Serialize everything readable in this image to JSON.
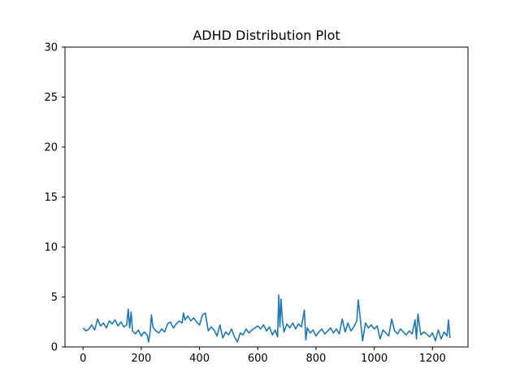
{
  "chart_data": {
    "type": "line",
    "title": "ADHD Distribution Plot",
    "xlabel": "",
    "ylabel": "",
    "xlim": [
      -62,
      1322
    ],
    "ylim": [
      0,
      30
    ],
    "xticks": [
      "0",
      "200",
      "400",
      "600",
      "800",
      "1000",
      "1200"
    ],
    "yticks": [
      "0",
      "5",
      "10",
      "15",
      "20",
      "25",
      "30"
    ],
    "grid": false,
    "legend": "none",
    "series": [
      {
        "color": "#1f77b4",
        "x": [
          0,
          10,
          20,
          30,
          40,
          50,
          60,
          70,
          80,
          90,
          100,
          110,
          120,
          130,
          140,
          150,
          155,
          160,
          165,
          170,
          180,
          190,
          200,
          210,
          220,
          225,
          230,
          235,
          240,
          250,
          260,
          270,
          280,
          290,
          300,
          310,
          320,
          330,
          340,
          345,
          350,
          360,
          370,
          380,
          390,
          400,
          410,
          420,
          430,
          440,
          450,
          460,
          470,
          480,
          490,
          500,
          510,
          520,
          530,
          540,
          550,
          560,
          570,
          580,
          590,
          600,
          610,
          620,
          630,
          640,
          650,
          660,
          668,
          672,
          676,
          680,
          685,
          690,
          700,
          710,
          720,
          730,
          740,
          750,
          760,
          765,
          770,
          780,
          790,
          800,
          810,
          820,
          830,
          840,
          850,
          860,
          870,
          880,
          890,
          900,
          910,
          920,
          930,
          940,
          945,
          950,
          960,
          970,
          980,
          990,
          1000,
          1010,
          1020,
          1030,
          1040,
          1050,
          1060,
          1070,
          1080,
          1090,
          1100,
          1110,
          1120,
          1130,
          1140,
          1145,
          1150,
          1160,
          1170,
          1180,
          1190,
          1200,
          1210,
          1220,
          1230,
          1240,
          1250,
          1255,
          1260
        ],
        "y": [
          1.9,
          1.6,
          1.8,
          2.2,
          1.7,
          2.8,
          2.1,
          2.4,
          1.9,
          2.6,
          2.3,
          2.7,
          2.1,
          2.5,
          2.0,
          2.2,
          3.8,
          1.9,
          3.5,
          1.6,
          1.3,
          1.7,
          1.1,
          1.5,
          1.2,
          0.5,
          1.4,
          3.2,
          2.0,
          1.6,
          1.4,
          1.8,
          1.5,
          2.3,
          2.5,
          1.9,
          2.3,
          2.6,
          2.4,
          3.4,
          2.7,
          3.1,
          2.6,
          2.9,
          2.5,
          2.2,
          3.2,
          3.4,
          1.6,
          2.0,
          1.7,
          1.1,
          2.2,
          0.9,
          1.5,
          1.2,
          1.8,
          1.0,
          0.5,
          1.4,
          1.2,
          1.8,
          1.4,
          1.7,
          1.9,
          2.1,
          1.8,
          2.2,
          1.6,
          2.0,
          1.2,
          1.7,
          1.0,
          5.2,
          2.0,
          4.8,
          2.6,
          1.5,
          2.3,
          1.9,
          2.4,
          1.8,
          2.3,
          2.0,
          3.7,
          0.7,
          1.9,
          1.4,
          1.7,
          1.1,
          1.5,
          1.8,
          1.3,
          1.6,
          1.9,
          1.4,
          1.8,
          1.3,
          2.8,
          1.5,
          2.4,
          1.6,
          2.0,
          2.6,
          4.7,
          3.4,
          0.6,
          2.4,
          1.9,
          2.2,
          1.8,
          2.1,
          0.8,
          1.7,
          1.4,
          1.1,
          2.8,
          1.6,
          1.3,
          1.8,
          1.5,
          1.2,
          1.6,
          1.3,
          2.7,
          0.8,
          3.3,
          1.2,
          1.5,
          1.3,
          1.0,
          1.4,
          0.6,
          1.7,
          0.8,
          1.5,
          1.1,
          2.7,
          0.9
        ]
      }
    ]
  }
}
